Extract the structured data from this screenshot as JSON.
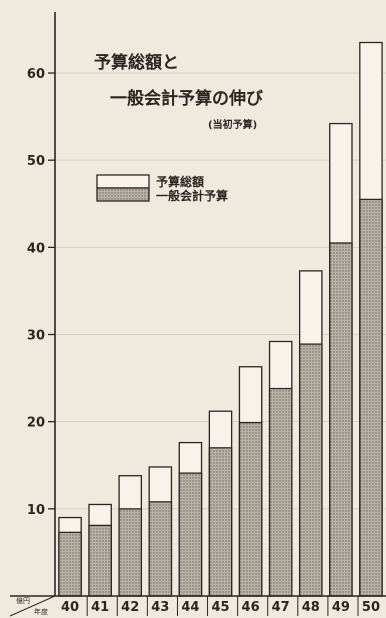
{
  "chart_data": {
    "type": "bar",
    "title": "予算総額と",
    "subtitle": "一般会計予算の伸び",
    "note": "(当初予算)",
    "corner_label_top": "億円",
    "corner_label_bottom": "年度",
    "categories": [
      "40",
      "41",
      "42",
      "43",
      "44",
      "45",
      "46",
      "47",
      "48",
      "49",
      "50"
    ],
    "series": [
      {
        "name": "予算総額",
        "values": [
          9.0,
          10.5,
          13.8,
          14.8,
          17.6,
          21.2,
          26.3,
          29.2,
          37.3,
          54.2,
          63.5
        ]
      },
      {
        "name": "一般会計予算",
        "values": [
          7.3,
          8.1,
          10.0,
          10.8,
          14.1,
          17.0,
          19.9,
          23.8,
          28.9,
          40.5,
          45.5
        ]
      }
    ],
    "y_ticks": [
      10,
      20,
      30,
      40,
      50,
      60
    ],
    "ylim": [
      0,
      67
    ],
    "grid": true,
    "legend_position": "upper-left",
    "colors": {
      "background": "#efe9de",
      "total_fill": "#f7f3ea",
      "general_fill": "#b3aca1",
      "line": "#2a2622"
    }
  }
}
